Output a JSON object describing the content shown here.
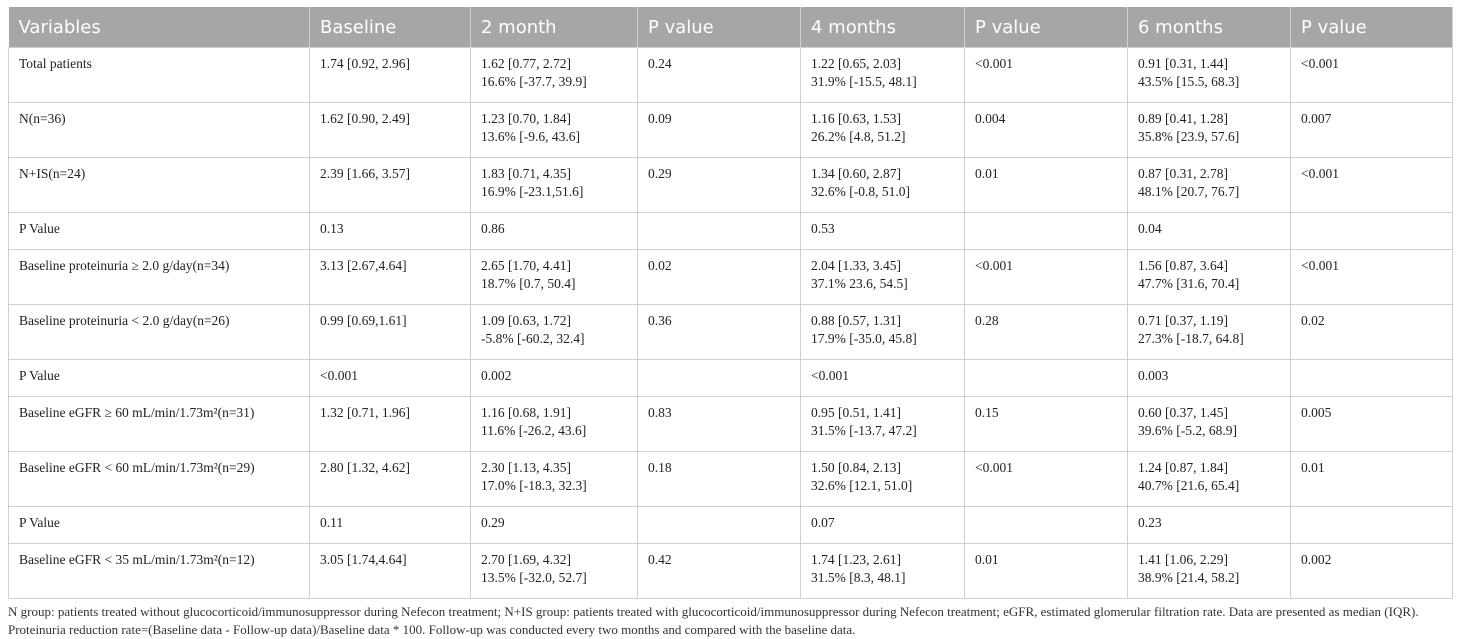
{
  "table": {
    "header": [
      "Variables",
      "Baseline",
      "2 month",
      "P value",
      "4 months",
      "P value",
      "6 months",
      "P value"
    ],
    "rows": [
      [
        [
          "Total patients"
        ],
        [
          "1.74 [0.92, 2.96]"
        ],
        [
          "1.62 [0.77, 2.72]",
          "16.6% [-37.7, 39.9]"
        ],
        [
          "0.24"
        ],
        [
          "1.22 [0.65, 2.03]",
          "31.9% [-15.5, 48.1]"
        ],
        [
          "<0.001"
        ],
        [
          "0.91 [0.31, 1.44]",
          "43.5% [15.5, 68.3]"
        ],
        [
          "<0.001"
        ]
      ],
      [
        [
          "N(n=36)"
        ],
        [
          "1.62 [0.90, 2.49]"
        ],
        [
          "1.23 [0.70, 1.84]",
          "13.6% [-9.6, 43.6]"
        ],
        [
          "0.09"
        ],
        [
          "1.16 [0.63, 1.53]",
          "26.2% [4.8, 51.2]"
        ],
        [
          "0.004"
        ],
        [
          "0.89 [0.41, 1.28]",
          "35.8% [23.9, 57.6]"
        ],
        [
          "0.007"
        ]
      ],
      [
        [
          "N+IS(n=24)"
        ],
        [
          "2.39 [1.66, 3.57]"
        ],
        [
          "1.83 [0.71, 4.35]",
          "16.9% [-23.1,51.6]"
        ],
        [
          "0.29"
        ],
        [
          "1.34 [0.60, 2.87]",
          "32.6% [-0.8, 51.0]"
        ],
        [
          "0.01"
        ],
        [
          "0.87 [0.31, 2.78]",
          "48.1% [20.7, 76.7]"
        ],
        [
          "<0.001"
        ]
      ],
      [
        [
          "P Value"
        ],
        [
          "0.13"
        ],
        [
          "0.86"
        ],
        [],
        [
          "0.53"
        ],
        [],
        [
          "0.04"
        ],
        []
      ],
      [
        [
          "Baseline proteinuria ≥ 2.0 g/day(n=34)"
        ],
        [
          "3.13 [2.67,4.64]"
        ],
        [
          "2.65 [1.70, 4.41]",
          "18.7% [0.7, 50.4]"
        ],
        [
          "0.02"
        ],
        [
          "2.04 [1.33, 3.45]",
          "37.1% 23.6, 54.5]"
        ],
        [
          "<0.001"
        ],
        [
          "1.56 [0.87, 3.64]",
          "47.7% [31.6, 70.4]"
        ],
        [
          "<0.001"
        ]
      ],
      [
        [
          "Baseline proteinuria < 2.0 g/day(n=26)"
        ],
        [
          "0.99 [0.69,1.61]"
        ],
        [
          "1.09 [0.63, 1.72]",
          "-5.8% [-60.2, 32.4]"
        ],
        [
          "0.36"
        ],
        [
          "0.88 [0.57, 1.31]",
          "17.9% [-35.0, 45.8]"
        ],
        [
          "0.28"
        ],
        [
          "0.71 [0.37, 1.19]",
          "27.3% [-18.7, 64.8]"
        ],
        [
          "0.02"
        ]
      ],
      [
        [
          "P Value"
        ],
        [
          "<0.001"
        ],
        [
          "0.002"
        ],
        [],
        [
          "<0.001"
        ],
        [],
        [
          "0.003"
        ],
        []
      ],
      [
        [
          "Baseline eGFR ≥ 60 mL/min/1.73m²(n=31)"
        ],
        [
          "1.32 [0.71, 1.96]"
        ],
        [
          "1.16 [0.68, 1.91]",
          "11.6% [-26.2, 43.6]"
        ],
        [
          "0.83"
        ],
        [
          "0.95 [0.51, 1.41]",
          "31.5% [-13.7, 47.2]"
        ],
        [
          "0.15"
        ],
        [
          "0.60 [0.37, 1.45]",
          "39.6% [-5.2, 68.9]"
        ],
        [
          "0.005"
        ]
      ],
      [
        [
          "Baseline eGFR < 60 mL/min/1.73m²(n=29)"
        ],
        [
          "2.80 [1.32, 4.62]"
        ],
        [
          "2.30 [1.13, 4.35]",
          "17.0% [-18.3, 32.3]"
        ],
        [
          "0.18"
        ],
        [
          "1.50 [0.84, 2.13]",
          "32.6% [12.1, 51.0]"
        ],
        [
          "<0.001"
        ],
        [
          "1.24 [0.87, 1.84]",
          "40.7% [21.6, 65.4]"
        ],
        [
          "0.01"
        ]
      ],
      [
        [
          "P Value"
        ],
        [
          "0.11"
        ],
        [
          "0.29"
        ],
        [],
        [
          "0.07"
        ],
        [],
        [
          "0.23"
        ],
        []
      ],
      [
        [
          "Baseline eGFR < 35 mL/min/1.73m²(n=12)"
        ],
        [
          "3.05 [1.74,4.64]"
        ],
        [
          "2.70 [1.69, 4.32]",
          "13.5% [-32.0, 52.7]"
        ],
        [
          "0.42"
        ],
        [
          "1.74 [1.23, 2.61]",
          "31.5% [8.3, 48.1]"
        ],
        [
          "0.01"
        ],
        [
          "1.41 [1.06, 2.29]",
          "38.9% [21.4, 58.2]"
        ],
        [
          "0.002"
        ]
      ]
    ],
    "footnote": "N group: patients treated without glucocorticoid/immunosuppressor during Nefecon treatment; N+IS group: patients treated with glucocorticoid/immunosuppressor during Nefecon treatment; eGFR, estimated glomerular filtration rate. Data are presented as median (IQR). Proteinuria reduction rate=(Baseline data - Follow-up data)/Baseline data * 100. Follow-up was conducted every two months and compared with the baseline data."
  }
}
